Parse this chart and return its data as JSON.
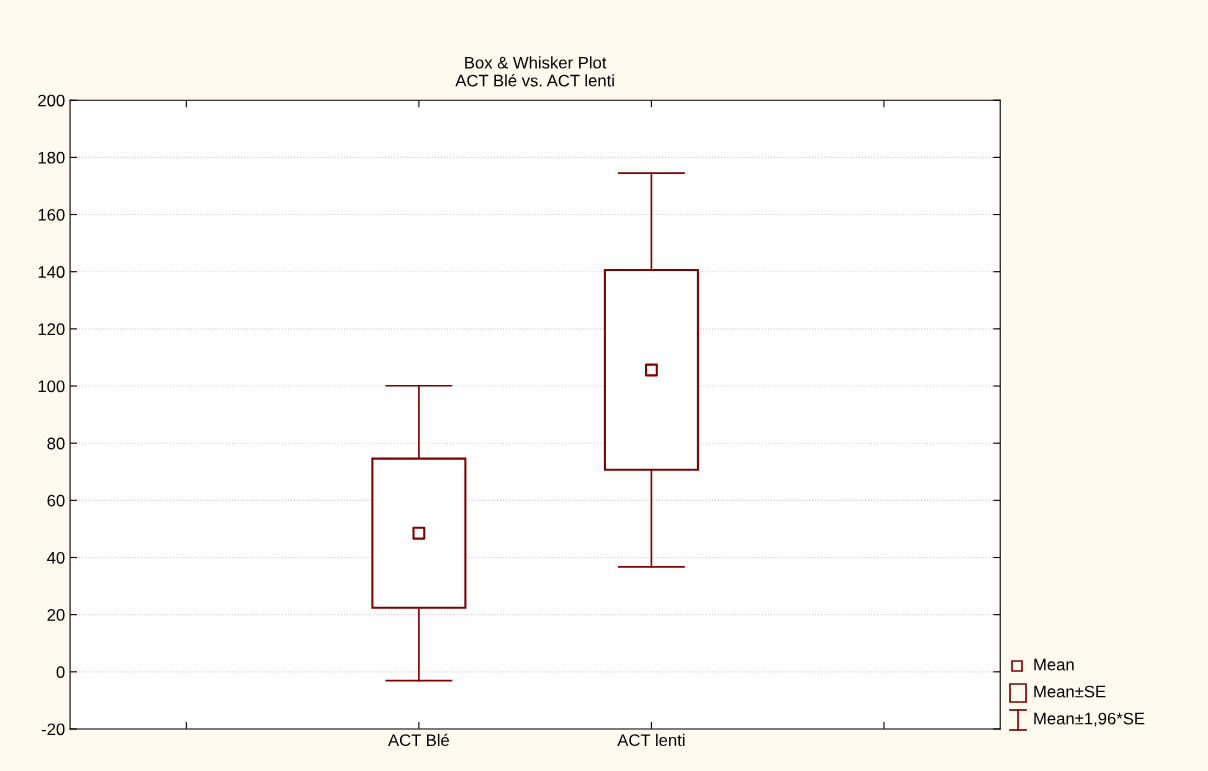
{
  "chart_data": {
    "type": "box",
    "title": "Box & Whisker Plot",
    "subtitle": "ACT Blé vs. ACT lenti",
    "categories": [
      "ACT Blé",
      "ACT lenti"
    ],
    "color": "#800000",
    "boxes": [
      {
        "low": -3.1,
        "q1": 22.4,
        "q3": 74.6,
        "high": 100.1,
        "mean": 48.5
      },
      {
        "low": 36.7,
        "q1": 70.7,
        "q3": 140.6,
        "high": 174.5,
        "mean": 105.6
      }
    ],
    "annotations": [
      "Mean",
      "Mean±SE",
      "Mean±1,96*SE"
    ],
    "ylim": [
      -20,
      200
    ],
    "yticks": [
      -20,
      0,
      20,
      40,
      60,
      80,
      100,
      120,
      140,
      160,
      180,
      200
    ],
    "grid": "y"
  }
}
